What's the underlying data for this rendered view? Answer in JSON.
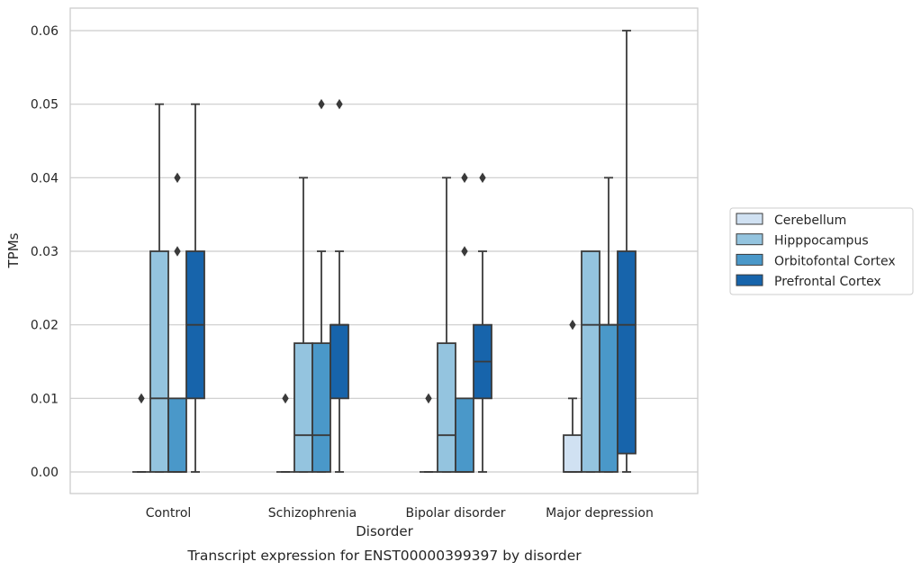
{
  "caption": "Transcript expression for ENST00000399397 by disorder",
  "chart_data": {
    "type": "box",
    "xlabel": "Disorder",
    "ylabel": "TPMs",
    "ylim": [
      -0.003,
      0.063
    ],
    "yticks": [
      0.0,
      0.01,
      0.02,
      0.03,
      0.04,
      0.05,
      0.06
    ],
    "ytick_labels": [
      "0.00",
      "0.01",
      "0.02",
      "0.03",
      "0.04",
      "0.05",
      "0.06"
    ],
    "grid": "horizontal",
    "legend_placement": "right",
    "categories": [
      "Control",
      "Schizophrenia",
      "Bipolar disorder",
      "Major depression"
    ],
    "series": [
      {
        "name": "Cerebellum",
        "color": "#d0e1f2",
        "boxes": [
          {
            "q1": 0.0,
            "median": 0.0,
            "q3": 0.0,
            "whisker_low": 0.0,
            "whisker_high": 0.0,
            "outliers": [
              0.01
            ]
          },
          {
            "q1": 0.0,
            "median": 0.0,
            "q3": 0.0,
            "whisker_low": 0.0,
            "whisker_high": 0.0,
            "outliers": [
              0.01
            ]
          },
          {
            "q1": 0.0,
            "median": 0.0,
            "q3": 0.0,
            "whisker_low": 0.0,
            "whisker_high": 0.0,
            "outliers": [
              0.01
            ]
          },
          {
            "q1": 0.0,
            "median": 0.0,
            "q3": 0.005,
            "whisker_low": 0.0,
            "whisker_high": 0.01,
            "outliers": [
              0.02
            ]
          }
        ]
      },
      {
        "name": "Hipppocampus",
        "color": "#94c4df",
        "boxes": [
          {
            "q1": 0.0,
            "median": 0.01,
            "q3": 0.03,
            "whisker_low": 0.0,
            "whisker_high": 0.05,
            "outliers": []
          },
          {
            "q1": 0.0,
            "median": 0.005,
            "q3": 0.0175,
            "whisker_low": 0.0,
            "whisker_high": 0.04,
            "outliers": []
          },
          {
            "q1": 0.0,
            "median": 0.005,
            "q3": 0.0175,
            "whisker_low": 0.0,
            "whisker_high": 0.04,
            "outliers": []
          },
          {
            "q1": 0.0,
            "median": 0.02,
            "q3": 0.03,
            "whisker_low": 0.0,
            "whisker_high": 0.03,
            "outliers": []
          }
        ]
      },
      {
        "name": "Orbitofontal Cortex",
        "color": "#4a98c9",
        "boxes": [
          {
            "q1": 0.0,
            "median": 0.0,
            "q3": 0.01,
            "whisker_low": 0.0,
            "whisker_high": 0.01,
            "outliers": [
              0.03,
              0.04
            ]
          },
          {
            "q1": 0.0,
            "median": 0.005,
            "q3": 0.0175,
            "whisker_low": 0.0,
            "whisker_high": 0.03,
            "outliers": [
              0.05
            ]
          },
          {
            "q1": 0.0,
            "median": 0.0,
            "q3": 0.01,
            "whisker_low": 0.0,
            "whisker_high": 0.01,
            "outliers": [
              0.03,
              0.04
            ]
          },
          {
            "q1": 0.0,
            "median": 0.02,
            "q3": 0.02,
            "whisker_low": 0.0,
            "whisker_high": 0.04,
            "outliers": []
          }
        ]
      },
      {
        "name": "Prefrontal Cortex",
        "color": "#1764ab",
        "boxes": [
          {
            "q1": 0.01,
            "median": 0.02,
            "q3": 0.03,
            "whisker_low": 0.0,
            "whisker_high": 0.05,
            "outliers": []
          },
          {
            "q1": 0.01,
            "median": 0.02,
            "q3": 0.02,
            "whisker_low": 0.0,
            "whisker_high": 0.03,
            "outliers": [
              0.05
            ]
          },
          {
            "q1": 0.01,
            "median": 0.015,
            "q3": 0.02,
            "whisker_low": 0.0,
            "whisker_high": 0.03,
            "outliers": [
              0.04
            ]
          },
          {
            "q1": 0.0025,
            "median": 0.02,
            "q3": 0.03,
            "whisker_low": 0.0,
            "whisker_high": 0.06,
            "outliers": []
          }
        ]
      }
    ]
  }
}
